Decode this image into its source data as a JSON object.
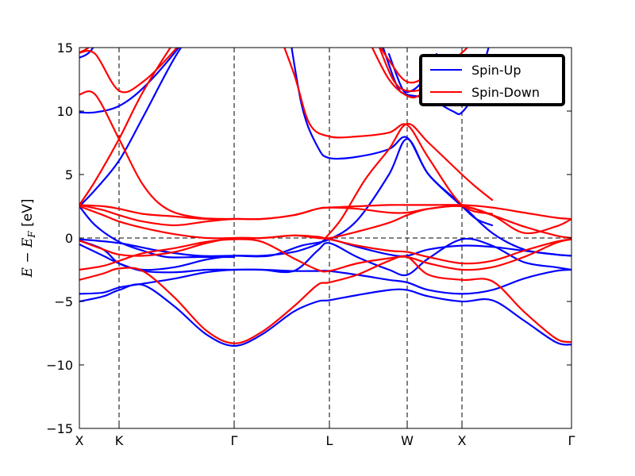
{
  "chart_data": {
    "type": "line",
    "title": "",
    "xlabel": "",
    "ylabel": {
      "math": "E − E",
      "subscript": "F",
      "unit": " [eV]"
    },
    "ylim": [
      -15,
      15
    ],
    "yticks": [
      -15,
      -10,
      -5,
      0,
      5,
      10,
      15
    ],
    "ytick_labels": [
      "−15",
      "−10",
      "−5",
      "0",
      "5",
      "10",
      "15"
    ],
    "xlim": [
      0,
      6.2
    ],
    "kpoints": [
      {
        "label": "X",
        "x": 0
      },
      {
        "label": "K",
        "x": 0.5
      },
      {
        "label": "Γ",
        "x": 1.95
      },
      {
        "label": "L",
        "x": 3.15
      },
      {
        "label": "W",
        "x": 4.13
      },
      {
        "label": "X",
        "x": 4.82
      },
      {
        "label": "Γ",
        "x": 6.2
      }
    ],
    "fermi_level": 0,
    "grid": false,
    "legend": {
      "placement": "top-right",
      "entries": [
        {
          "name": "Spin-Up",
          "color": "#0000ff"
        },
        {
          "name": "Spin-Down",
          "color": "#ff0000"
        }
      ]
    },
    "series": [
      {
        "name": "Spin-Up",
        "color": "#0000ff",
        "bands": [
          {
            "x": [
              0,
              0.3,
              0.5,
              0.8,
              1.2,
              1.6,
              1.95,
              2.3,
              2.7,
              3.0,
              3.15,
              3.5,
              3.9,
              4.13,
              4.4,
              4.82,
              5.2,
              5.6,
              6.0,
              6.2
            ],
            "y": [
              -5.0,
              -4.6,
              -4.1,
              -3.7,
              -5.4,
              -7.6,
              -8.5,
              -7.6,
              -5.8,
              -5.0,
              -4.9,
              -4.5,
              -4.1,
              -4.1,
              -4.6,
              -5.0,
              -4.9,
              -6.5,
              -8.2,
              -8.4
            ]
          },
          {
            "x": [
              0,
              0.3,
              0.5,
              0.8,
              1.2,
              1.6,
              1.95,
              2.3,
              2.7,
              3.0,
              3.15,
              3.5,
              3.9,
              4.13,
              4.4,
              4.82,
              5.2,
              5.6,
              6.0,
              6.2
            ],
            "y": [
              -4.4,
              -4.3,
              -3.9,
              -3.6,
              -3.2,
              -2.7,
              -2.5,
              -2.5,
              -2.6,
              -2.6,
              -2.6,
              -2.9,
              -3.3,
              -3.5,
              -4.1,
              -4.4,
              -4.1,
              -3.2,
              -2.6,
              -2.5
            ]
          },
          {
            "x": [
              0,
              0.3,
              0.5,
              0.8,
              1.2,
              1.6,
              1.95,
              2.3,
              2.7,
              3.0,
              3.15,
              3.5,
              3.9,
              4.13,
              4.4,
              4.82,
              5.2,
              5.6,
              6.0,
              6.2
            ],
            "y": [
              -0.5,
              -1.4,
              -2.0,
              -2.6,
              -2.7,
              -2.5,
              -2.5,
              -2.5,
              -2.6,
              -1.0,
              -0.4,
              -1.5,
              -2.5,
              -2.9,
              -1.6,
              -0.1,
              -0.6,
              -1.9,
              -2.3,
              -2.5
            ]
          },
          {
            "x": [
              0,
              0.3,
              0.5,
              0.8,
              1.2,
              1.6,
              1.95,
              2.3,
              2.7,
              3.0,
              3.15,
              3.5,
              3.9,
              4.13,
              4.4,
              4.82,
              5.2,
              5.6,
              6.0,
              6.2
            ],
            "y": [
              -0.2,
              -0.9,
              -2.0,
              -2.5,
              -2.3,
              -1.7,
              -1.4,
              -1.4,
              -1.1,
              -0.5,
              -0.1,
              -0.7,
              -1.3,
              -1.4,
              -0.9,
              -0.6,
              -0.7,
              -1.0,
              -1.3,
              -1.4
            ]
          },
          {
            "x": [
              0,
              0.5,
              1.0,
              1.5,
              1.95,
              2.4,
              2.8,
              3.15,
              3.5,
              3.9,
              4.13,
              4.4,
              4.82,
              5.2,
              5.6,
              6.0,
              6.2
            ],
            "y": [
              -0.1,
              -0.4,
              -1.0,
              -1.4,
              -1.4,
              -1.4,
              -0.6,
              -0.1,
              1.4,
              5.0,
              7.8,
              5.0,
              2.6,
              0.4,
              -0.9,
              -1.3,
              -1.4
            ]
          },
          {
            "x": [
              0,
              0.2,
              0.5,
              0.8,
              1.2,
              1.6,
              1.95
            ],
            "y": [
              2.5,
              3.8,
              6.1,
              9.5,
              14.2,
              18,
              22
            ]
          },
          {
            "x": [
              0,
              0.2,
              0.5,
              0.8,
              1.1,
              1.5,
              1.95
            ],
            "y": [
              2.5,
              1.0,
              -0.3,
              -1.0,
              -1.5,
              -1.5,
              -1.5
            ]
          },
          {
            "x": [
              0,
              0.2,
              0.5,
              0.8,
              1.2,
              1.6
            ],
            "y": [
              9.9,
              9.9,
              10.4,
              11.8,
              14.6,
              18
            ]
          },
          {
            "x": [
              0,
              0.15,
              0.35,
              0.6
            ],
            "y": [
              14.2,
              14.8,
              17,
              20
            ]
          },
          {
            "x": [
              2.6,
              2.8,
              3.0,
              3.15,
              3.5,
              3.9,
              4.13,
              4.4,
              4.82,
              5.0,
              5.2
            ],
            "y": [
              18,
              10.5,
              7.2,
              6.3,
              6.4,
              7.0,
              7.9,
              5.0,
              2.5,
              1.5,
              1.0
            ]
          },
          {
            "x": [
              3.8,
              4.0,
              4.13,
              4.4,
              4.7,
              4.82,
              5.0,
              5.2
            ],
            "y": [
              15.5,
              12.0,
              11.3,
              11.0,
              10.0,
              9.9,
              11.8,
              16
            ]
          },
          {
            "x": [
              3.9,
              4.05,
              4.13,
              4.3,
              4.5
            ],
            "y": [
              14.5,
              12.0,
              11.5,
              12.2,
              14.5
            ]
          }
        ]
      },
      {
        "name": "Spin-Down",
        "color": "#ff0000",
        "bands": [
          {
            "x": [
              0,
              0.3,
              0.5,
              0.8,
              1.2,
              1.6,
              1.95,
              2.3,
              2.7,
              3.0,
              3.15,
              3.5,
              3.9,
              4.13,
              4.4,
              4.82,
              5.2,
              5.6,
              6.0,
              6.2
            ],
            "y": [
              -3.3,
              -2.8,
              -2.4,
              -2.6,
              -4.7,
              -7.3,
              -8.3,
              -7.4,
              -5.4,
              -3.7,
              -3.5,
              -2.9,
              -1.8,
              -1.5,
              -2.9,
              -3.3,
              -3.4,
              -5.8,
              -7.9,
              -8.2
            ]
          },
          {
            "x": [
              0,
              0.3,
              0.5,
              0.8,
              1.2,
              1.6,
              1.95,
              2.3,
              2.7,
              3.0,
              3.15,
              3.5,
              3.9,
              4.13,
              4.4,
              4.82,
              5.2,
              5.6,
              6.0,
              6.2
            ],
            "y": [
              -2.5,
              -2.2,
              -1.8,
              -1.2,
              -0.8,
              -0.3,
              -0.1,
              -0.3,
              -1.6,
              -2.5,
              -2.6,
              -2.0,
              -1.6,
              -1.5,
              -2.0,
              -2.5,
              -2.3,
              -1.5,
              -0.4,
              -0.1
            ]
          },
          {
            "x": [
              0,
              0.3,
              0.5,
              0.8,
              1.2,
              1.6,
              1.95,
              2.3,
              2.7,
              3.0,
              3.15,
              3.5,
              3.9,
              4.13,
              4.4,
              4.82,
              5.2,
              5.6,
              6.0,
              6.2
            ],
            "y": [
              -0.2,
              -0.9,
              -1.3,
              -1.4,
              -1.1,
              -0.4,
              0.0,
              0.0,
              0.2,
              0.0,
              -0.1,
              -0.6,
              -1.0,
              -1.1,
              -1.5,
              -2.0,
              -1.8,
              -1.0,
              -0.3,
              -0.1
            ]
          },
          {
            "x": [
              0,
              0.3,
              0.5,
              0.8,
              1.2,
              1.6,
              1.95,
              2.3,
              2.7,
              3.0,
              3.15,
              3.5,
              3.9,
              4.13,
              4.4,
              4.82,
              5.2,
              5.6,
              6.0,
              6.2
            ],
            "y": [
              2.5,
              1.8,
              1.3,
              0.8,
              0.3,
              0.0,
              0.0,
              0.0,
              0.2,
              0.1,
              0.0,
              0.5,
              1.2,
              1.8,
              2.3,
              2.5,
              1.8,
              0.9,
              0.2,
              0.0
            ]
          },
          {
            "x": [
              0,
              0.3,
              0.5,
              0.8,
              1.2,
              1.6,
              1.95,
              2.3,
              2.7,
              3.0,
              3.15,
              3.5,
              3.9,
              4.13,
              4.4,
              4.82,
              5.2,
              5.6,
              6.0,
              6.2
            ],
            "y": [
              2.6,
              2.2,
              1.8,
              1.3,
              1.0,
              1.3,
              1.5,
              1.5,
              1.8,
              2.3,
              2.4,
              2.3,
              2.0,
              2.0,
              2.3,
              2.5,
              1.8,
              0.4,
              0.9,
              1.5
            ]
          },
          {
            "x": [
              0,
              0.3,
              0.5,
              0.8,
              1.2,
              1.6,
              1.95,
              2.3,
              2.7,
              3.0,
              3.15,
              3.5,
              3.9,
              4.13,
              4.4,
              4.82,
              5.2,
              5.6,
              6.0,
              6.2
            ],
            "y": [
              2.6,
              2.5,
              2.3,
              1.9,
              1.7,
              1.5,
              1.5,
              1.5,
              1.8,
              2.3,
              2.4,
              2.5,
              2.6,
              2.6,
              2.6,
              2.6,
              2.4,
              2.0,
              1.6,
              1.5
            ]
          },
          {
            "x": [
              0,
              0.2,
              0.5,
              0.8,
              1.2,
              1.6,
              1.95
            ],
            "y": [
              2.6,
              4.5,
              7.8,
              11.5,
              15.5,
              19,
              22
            ]
          },
          {
            "x": [
              0,
              0.2,
              0.5,
              0.8,
              1.1,
              1.5,
              1.95
            ],
            "y": [
              11.3,
              11.3,
              7.8,
              4.2,
              2.3,
              1.6,
              1.5
            ]
          },
          {
            "x": [
              0,
              0.2,
              0.5,
              0.8,
              1.2,
              1.6
            ],
            "y": [
              14.6,
              14.5,
              11.6,
              12.3,
              14.8,
              18
            ]
          },
          {
            "x": [
              0,
              0.15,
              0.35,
              0.6
            ],
            "y": [
              14.6,
              15.2,
              17,
              20
            ]
          },
          {
            "x": [
              2.4,
              2.7,
              2.9,
              3.15,
              3.5,
              3.9,
              4.13,
              4.4,
              4.82,
              5.2
            ],
            "y": [
              18,
              13.0,
              9.0,
              8.0,
              8.0,
              8.3,
              8.9,
              6.3,
              2.6,
              1.9
            ]
          },
          {
            "x": [
              3.1,
              3.3,
              3.6,
              3.9,
              4.13,
              4.4,
              4.82,
              5.0,
              5.2
            ],
            "y": [
              0.0,
              1.5,
              4.6,
              7.0,
              9.0,
              7.5,
              5.0,
              4.0,
              3.0
            ]
          },
          {
            "x": [
              3.7,
              3.9,
              4.13,
              4.4,
              4.82,
              5.0,
              5.2
            ],
            "y": [
              16,
              14.0,
              12.3,
              12.8,
              14.6,
              16,
              18
            ]
          },
          {
            "x": [
              3.75,
              3.95,
              4.13,
              4.4,
              4.6
            ],
            "y": [
              15.5,
              12.5,
              11.6,
              12.0,
              14.0
            ]
          },
          {
            "x": [
              3.65,
              3.9,
              4.13,
              4.3,
              4.6
            ],
            "y": [
              15.5,
              12.5,
              11.2,
              11.3,
              13.0
            ]
          }
        ]
      }
    ]
  }
}
